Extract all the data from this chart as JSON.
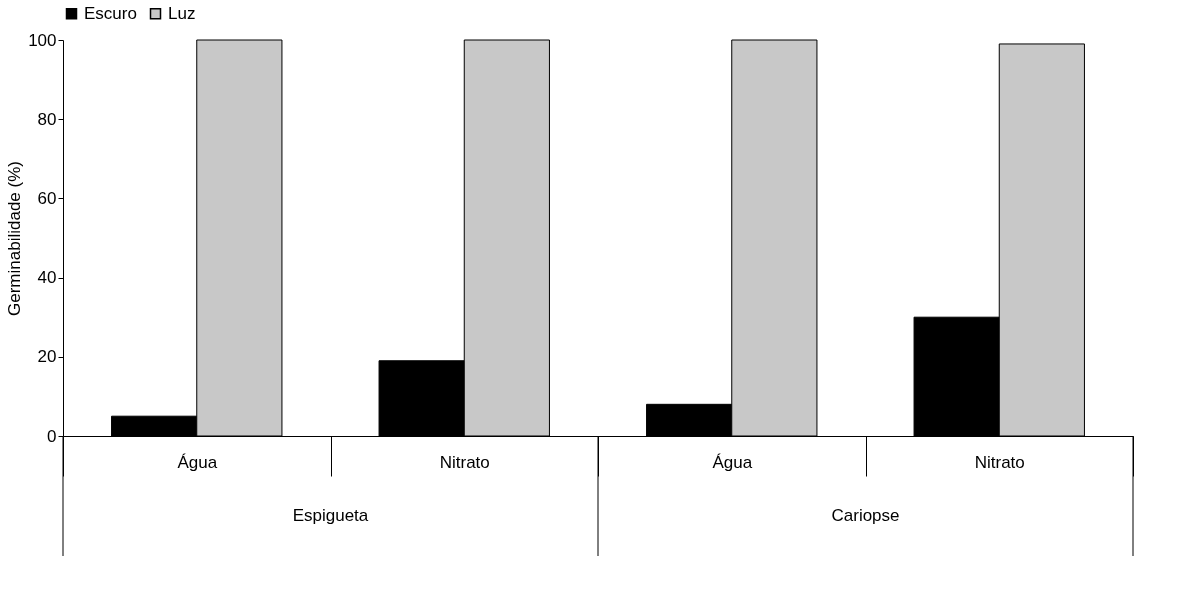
{
  "chart_data": {
    "type": "bar",
    "ylabel": "Germinabilidade (%)",
    "categories": [
      "Água",
      "Nitrato",
      "Água",
      "Nitrato"
    ],
    "series": [
      {
        "name": "Escuro",
        "color": "#000000",
        "values": [
          5,
          19,
          8,
          30
        ]
      },
      {
        "name": "Luz",
        "color": "#c8c8c8",
        "values": [
          100,
          100,
          100,
          99
        ]
      }
    ],
    "ylim": [
      0,
      100
    ],
    "yticks": [
      0,
      20,
      40,
      60,
      80,
      100
    ],
    "grid": false,
    "legend": "top",
    "annotations": [
      "Espigueta",
      "Cariopse"
    ]
  }
}
